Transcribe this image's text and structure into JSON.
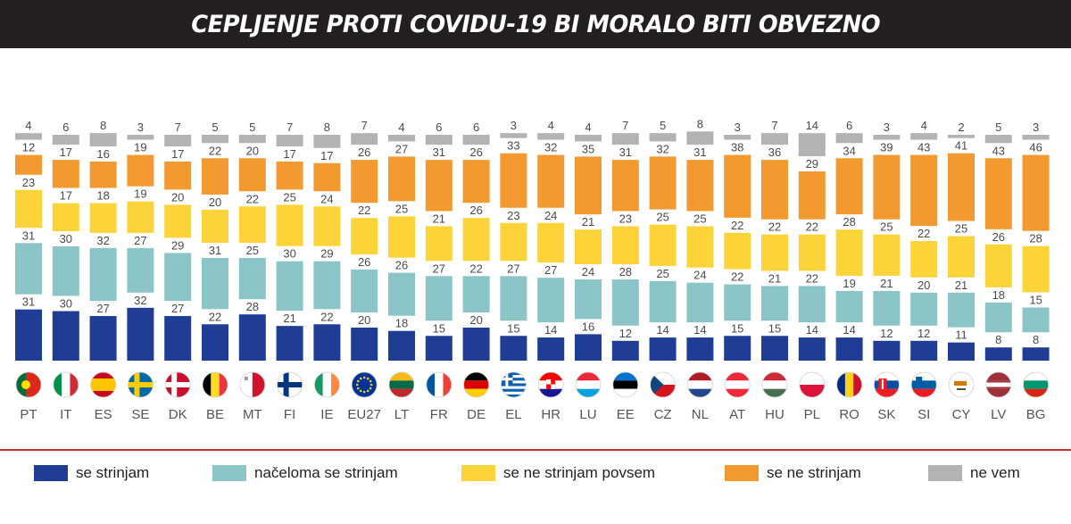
{
  "title": "CEPLJENJE PROTI COVIDU-19 BI MORALO BITI OBVEZNO",
  "colors": {
    "strongly_agree": "#1f3d95",
    "agree": "#8cc5c8",
    "disagree": "#fdd33a",
    "strongly_disagree": "#f29a30",
    "dont_know": "#b3b3b3",
    "rule": "#c4343b"
  },
  "legend": [
    {
      "label": "se strinjam",
      "color": "#1f3d95"
    },
    {
      "label": "načeloma se strinjam",
      "color": "#8cc5c8"
    },
    {
      "label": "se ne strinjam povsem",
      "color": "#fdd33a"
    },
    {
      "label": "se ne strinjam",
      "color": "#f29a30"
    },
    {
      "label": "ne vem",
      "color": "#b3b3b3"
    }
  ],
  "chart_data": {
    "type": "bar",
    "stacked": true,
    "title": "CEPLJENJE PROTI COVIDU-19 BI MORALO BITI OBVEZNO",
    "categories": [
      "PT",
      "IT",
      "ES",
      "SE",
      "DK",
      "BE",
      "MT",
      "FI",
      "IE",
      "EU27",
      "LT",
      "FR",
      "DE",
      "EL",
      "HR",
      "LU",
      "EE",
      "CZ",
      "NL",
      "AT",
      "HU",
      "PL",
      "RO",
      "SK",
      "SI",
      "CY",
      "LV",
      "BG"
    ],
    "flags": [
      "portugal-flag-icon",
      "italy-flag-icon",
      "spain-flag-icon",
      "sweden-flag-icon",
      "denmark-flag-icon",
      "belgium-flag-icon",
      "malta-flag-icon",
      "finland-flag-icon",
      "ireland-flag-icon",
      "eu-flag-icon",
      "lithuania-flag-icon",
      "france-flag-icon",
      "germany-flag-icon",
      "greece-flag-icon",
      "croatia-flag-icon",
      "luxembourg-flag-icon",
      "estonia-flag-icon",
      "czechia-flag-icon",
      "netherlands-flag-icon",
      "austria-flag-icon",
      "hungary-flag-icon",
      "poland-flag-icon",
      "romania-flag-icon",
      "slovakia-flag-icon",
      "slovenia-flag-icon",
      "cyprus-flag-icon",
      "latvia-flag-icon",
      "bulgaria-flag-icon"
    ],
    "series": [
      {
        "name": "se strinjam",
        "color": "#1f3d95",
        "values": [
          31,
          30,
          27,
          32,
          27,
          22,
          28,
          21,
          22,
          20,
          18,
          15,
          20,
          15,
          14,
          16,
          12,
          14,
          14,
          15,
          15,
          14,
          14,
          12,
          12,
          11,
          8,
          8
        ]
      },
      {
        "name": "načeloma se strinjam",
        "color": "#8cc5c8",
        "values": [
          31,
          30,
          32,
          27,
          29,
          31,
          25,
          30,
          29,
          26,
          26,
          27,
          22,
          27,
          27,
          24,
          28,
          25,
          24,
          22,
          21,
          22,
          19,
          21,
          20,
          21,
          18,
          15
        ]
      },
      {
        "name": "se ne strinjam povsem",
        "color": "#fdd33a",
        "values": [
          23,
          17,
          18,
          19,
          20,
          20,
          22,
          25,
          24,
          22,
          25,
          21,
          26,
          23,
          24,
          21,
          23,
          25,
          25,
          22,
          22,
          22,
          28,
          25,
          22,
          25,
          26,
          28
        ]
      },
      {
        "name": "se ne strinjam",
        "color": "#f29a30",
        "values": [
          12,
          17,
          16,
          19,
          17,
          22,
          20,
          17,
          17,
          26,
          27,
          31,
          26,
          33,
          32,
          35,
          31,
          32,
          31,
          38,
          36,
          29,
          34,
          39,
          43,
          41,
          43,
          46
        ]
      },
      {
        "name": "ne vem",
        "color": "#b3b3b3",
        "values": [
          4,
          6,
          8,
          3,
          7,
          5,
          5,
          7,
          8,
          7,
          4,
          6,
          6,
          3,
          4,
          4,
          7,
          5,
          8,
          3,
          7,
          14,
          6,
          3,
          4,
          2,
          5,
          3
        ]
      }
    ]
  }
}
